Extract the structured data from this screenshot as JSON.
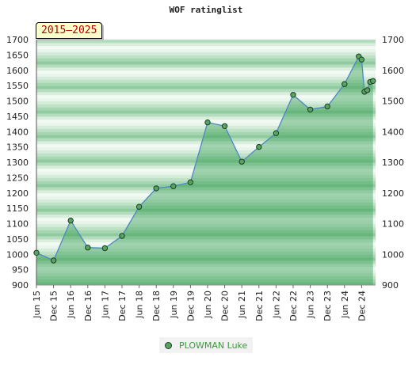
{
  "chart_data": {
    "type": "area",
    "title": "WOF ratinglist",
    "period_label": "2015–2025",
    "ylim": [
      900,
      1700
    ],
    "y_ticks": [
      900,
      950,
      1000,
      1050,
      1100,
      1150,
      1200,
      1250,
      1300,
      1350,
      1400,
      1450,
      1500,
      1550,
      1600,
      1650,
      1700
    ],
    "y_ticks_right": [
      900,
      1000,
      1100,
      1200,
      1300,
      1400,
      1500,
      1600,
      1700
    ],
    "x_ticks": [
      "Jun 15",
      "Dec 15",
      "Jun 16",
      "Dec 16",
      "Jun 17",
      "Dec 17",
      "Jun 18",
      "Dec 18",
      "Jun 19",
      "Dec 19",
      "Jun 20",
      "Dec 20",
      "Jun 21",
      "Dec 21",
      "Jun 22",
      "Dec 22",
      "Jun 23",
      "Dec 23",
      "Jun 24",
      "Dec 24"
    ],
    "legend": "bottom-center",
    "series": [
      {
        "name": "PLOWMAN Luke",
        "color": "#55a462",
        "points": [
          {
            "x": "2015-06",
            "y": 1005
          },
          {
            "x": "2015-12",
            "y": 980
          },
          {
            "x": "2016-06",
            "y": 1110
          },
          {
            "x": "2016-12",
            "y": 1022
          },
          {
            "x": "2017-06",
            "y": 1020
          },
          {
            "x": "2017-12",
            "y": 1060
          },
          {
            "x": "2018-06",
            "y": 1155
          },
          {
            "x": "2018-12",
            "y": 1215
          },
          {
            "x": "2019-06",
            "y": 1222
          },
          {
            "x": "2019-12",
            "y": 1235
          },
          {
            "x": "2020-06",
            "y": 1430
          },
          {
            "x": "2020-12",
            "y": 1418
          },
          {
            "x": "2021-06",
            "y": 1302
          },
          {
            "x": "2021-12",
            "y": 1350
          },
          {
            "x": "2022-06",
            "y": 1395
          },
          {
            "x": "2022-12",
            "y": 1520
          },
          {
            "x": "2023-06",
            "y": 1472
          },
          {
            "x": "2023-12",
            "y": 1482
          },
          {
            "x": "2024-06",
            "y": 1555
          },
          {
            "x": "2024-11",
            "y": 1645
          },
          {
            "x": "2024-12",
            "y": 1635
          },
          {
            "x": "2025-01",
            "y": 1530
          },
          {
            "x": "2025-02",
            "y": 1535
          },
          {
            "x": "2025-03",
            "y": 1562
          },
          {
            "x": "2025-04",
            "y": 1565
          }
        ]
      }
    ]
  }
}
